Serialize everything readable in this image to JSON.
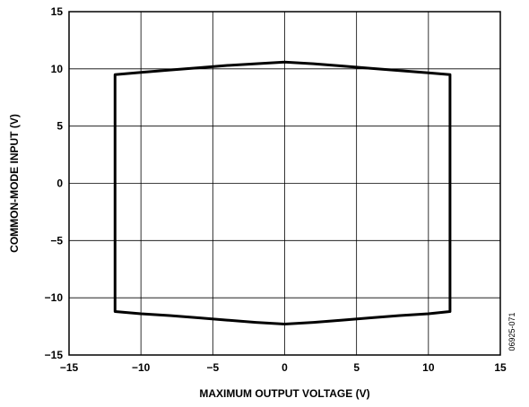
{
  "chart_data": {
    "type": "line",
    "title": "",
    "xlabel": "MAXIMUM OUTPUT VOLTAGE (V)",
    "ylabel": "COMMON-MODE INPUT (V)",
    "xlim": [
      -15,
      15
    ],
    "ylim": [
      -15,
      15
    ],
    "xticks": [
      -15,
      -10,
      -5,
      0,
      5,
      10,
      15
    ],
    "yticks": [
      -15,
      -10,
      -5,
      0,
      5,
      10,
      15
    ],
    "xtick_labels": [
      "−15",
      "−10",
      "−5",
      "0",
      "5",
      "10",
      "15"
    ],
    "ytick_labels": [
      "−15",
      "−10",
      "−5",
      "0",
      "5",
      "10",
      "15"
    ],
    "grid": true,
    "legend": "none",
    "figure_id": "06925-071",
    "line_color": "#000000",
    "series": [
      {
        "closed": true,
        "x": [
          -11.8,
          -10.0,
          -8.0,
          -6.0,
          -4.0,
          -2.0,
          0.0,
          2.0,
          4.0,
          6.0,
          8.0,
          10.0,
          11.5,
          11.5,
          10.0,
          8.0,
          6.0,
          4.0,
          2.0,
          0.0,
          -2.0,
          -4.0,
          -6.0,
          -8.0,
          -10.0,
          -11.8
        ],
        "y": [
          9.5,
          9.7,
          9.9,
          10.1,
          10.3,
          10.45,
          10.6,
          10.45,
          10.25,
          10.05,
          9.85,
          9.65,
          9.5,
          -11.2,
          -11.4,
          -11.55,
          -11.75,
          -11.95,
          -12.15,
          -12.3,
          -12.15,
          -11.95,
          -11.75,
          -11.55,
          -11.4,
          -11.2
        ]
      }
    ]
  }
}
